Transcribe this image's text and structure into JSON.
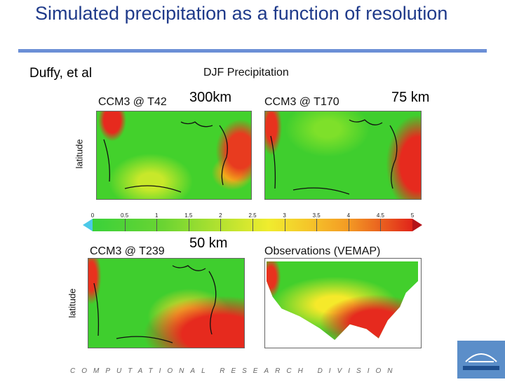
{
  "slide": {
    "title": "Simulated precipitation as a function of resolution",
    "authors": "Duffy, et al",
    "figure_title": "DJF Precipitation",
    "footer": "COMPUTATIONAL RESEARCH DIVISION"
  },
  "panels": [
    {
      "label": "CCM3 @ T42",
      "resolution": "300km"
    },
    {
      "label": "CCM3 @ T170",
      "resolution": "75 km"
    },
    {
      "label": "CCM3 @ T239",
      "resolution": "50 km"
    },
    {
      "label": "Observations (VEMAP)",
      "resolution": ""
    }
  ],
  "axis_label": "latitude",
  "colorbar": {
    "ticks": [
      "0",
      "0.5",
      "1",
      "1.5",
      "2",
      "2.5",
      "3",
      "3.5",
      "4",
      "4.5",
      "5"
    ],
    "colors": [
      "#3ad13a",
      "#b4e230",
      "#f0ec2e",
      "#f39a24",
      "#e1241a"
    ]
  }
}
